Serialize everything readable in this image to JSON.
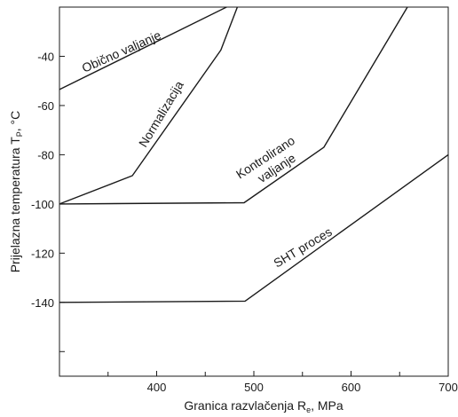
{
  "chart_data": {
    "type": "line",
    "xlabel": "Granica razvlačenja R",
    "xlabel_sub": "e",
    "xlabel_unit": ", MPa",
    "ylabel": "Prijelazna temperatura T",
    "ylabel_sub": "P",
    "ylabel_unit": ", °C",
    "xlim": [
      300,
      700
    ],
    "ylim": [
      -170,
      -20
    ],
    "x_ticks": [
      400,
      500,
      600,
      700
    ],
    "x_minor_ticks": [
      350,
      450,
      550,
      650
    ],
    "y_ticks": [
      -40,
      -60,
      -80,
      -100,
      -120,
      -140
    ],
    "y_minor_ticks": [
      -160
    ],
    "grid": false,
    "series": [
      {
        "name": "Obično valjanje",
        "points": [
          [
            300,
            -53.5
          ],
          [
            472,
            -20
          ]
        ]
      },
      {
        "name": "Normalizacija",
        "points": [
          [
            300,
            -100
          ],
          [
            375,
            -88.5
          ],
          [
            466,
            -37.5
          ],
          [
            483,
            -20
          ]
        ]
      },
      {
        "name": "Kontrolirano valjanje",
        "points": [
          [
            300,
            -100
          ],
          [
            490,
            -99.5
          ],
          [
            572,
            -77
          ],
          [
            658,
            -20
          ]
        ]
      },
      {
        "name": "SHT proces",
        "points": [
          [
            300,
            -140
          ],
          [
            491,
            -139.5
          ],
          [
            700,
            -80
          ]
        ]
      }
    ],
    "series_label_lines": [
      [
        "Obično valjanje"
      ],
      [
        "Normalizacija"
      ],
      [
        "Kontrolirano",
        "valjanje"
      ],
      [
        "SHT proces"
      ]
    ]
  }
}
